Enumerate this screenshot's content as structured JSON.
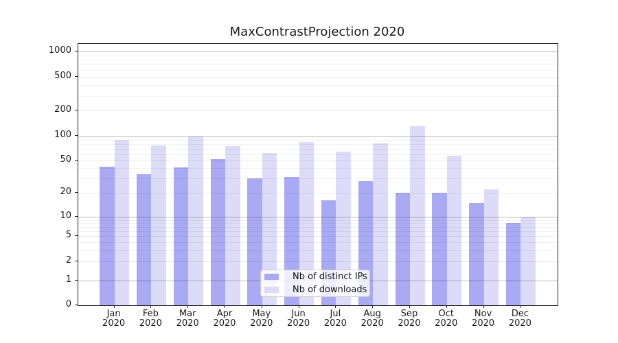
{
  "figure_title": "MaxContrastProjection 2020",
  "colors": {
    "ips_bar": "#a9a9f4",
    "downloads_bar": "#dcdcf8",
    "grid_major_apparent": "#bababa",
    "grid_minor_apparent": "#ededed",
    "spine": "#1a1a1a",
    "legend_border": "#cccccc"
  },
  "legend": {
    "items": [
      {
        "label": "Nb of distinct IPs",
        "color": "#a9a9f4"
      },
      {
        "label": "Nb of downloads",
        "color": "#dcdcf8"
      }
    ]
  },
  "chart_data": {
    "type": "bar",
    "title": "MaxContrastProjection 2020",
    "categories": [
      "Jan 2020",
      "Feb 2020",
      "Mar 2020",
      "Apr 2020",
      "May 2020",
      "Jun 2020",
      "Jul 2020",
      "Aug 2020",
      "Sep 2020",
      "Oct 2020",
      "Nov 2020",
      "Dec 2020"
    ],
    "series": [
      {
        "name": "Nb of distinct IPs",
        "values": [
          42,
          34,
          41,
          52,
          30,
          31,
          16,
          28,
          20,
          20,
          15,
          8
        ]
      },
      {
        "name": "Nb of downloads",
        "values": [
          89,
          76,
          98,
          75,
          62,
          85,
          64,
          82,
          130,
          57,
          22,
          10
        ]
      }
    ],
    "xlabel": "",
    "ylabel": "",
    "yscale": "log-like (symlog: log above 1, 0 shown at axis base)",
    "yticks": [
      0,
      1,
      2,
      5,
      10,
      20,
      50,
      100,
      200,
      500,
      1000
    ],
    "ylim": [
      0,
      1300
    ],
    "grid": "horizontal major and minor log gridlines",
    "legend_position": "lower center inside plot"
  }
}
